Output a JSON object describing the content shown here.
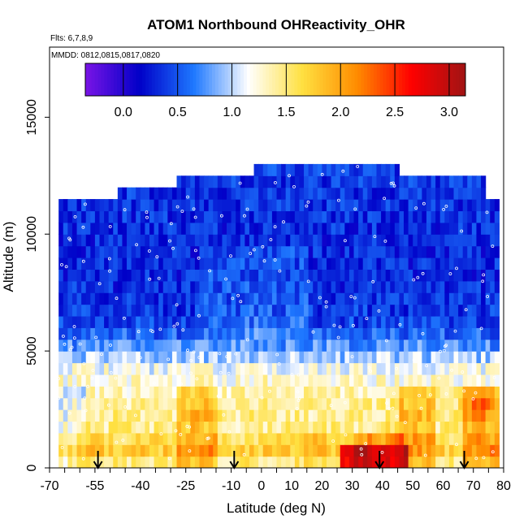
{
  "chart_data": {
    "type": "heatmap",
    "title": "ATOM1 Northbound OHReactivity_OHR",
    "subtitle_flights": "Flts: 6,7,8,9",
    "subtitle_dates": "MMDD: 0812,0815,0817,0820",
    "xlabel": "Latitude (deg N)",
    "ylabel": "Altitude (m)",
    "xlim": [
      -70,
      80
    ],
    "ylim": [
      0,
      18000
    ],
    "x_ticks": [
      -70,
      -55,
      -40,
      -25,
      -10,
      0,
      10,
      20,
      30,
      40,
      50,
      60,
      70,
      80
    ],
    "x_tick_labels": [
      "-70",
      "-55",
      "-40",
      "-25",
      "-10",
      "0",
      "10",
      "20",
      "30",
      "40",
      "50",
      "60",
      "70",
      "80"
    ],
    "y_ticks": [
      0,
      5000,
      10000,
      15000
    ],
    "y_tick_labels": [
      "0",
      "5000",
      "10000",
      "15000"
    ],
    "colorbar": {
      "range": [
        -0.35,
        3.15
      ],
      "ticks": [
        0.0,
        0.5,
        1.0,
        1.5,
        2.0,
        2.5,
        3.0
      ],
      "tick_labels": [
        "0.0",
        "0.5",
        "1.0",
        "1.5",
        "2.0",
        "2.5",
        "3.0"
      ],
      "stops": [
        "#7a14e6",
        "#0000c8",
        "#1e78ff",
        "#ffffff",
        "#ffe040",
        "#ff8c00",
        "#ff0000",
        "#a01414"
      ]
    },
    "coverage_top": [
      {
        "lat_min": -67,
        "lat_max": -47,
        "alt_max": 11400
      },
      {
        "lat_min": -47,
        "lat_max": -28,
        "alt_max": 11900
      },
      {
        "lat_min": -28,
        "lat_max": -3,
        "alt_max": 12400
      },
      {
        "lat_min": -3,
        "lat_max": 45,
        "alt_max": 12900
      },
      {
        "lat_min": 45,
        "lat_max": 74,
        "alt_max": 12400
      },
      {
        "lat_min": 74,
        "lat_max": 78,
        "alt_max": 11400
      }
    ],
    "alt_profile": [
      {
        "alt": 250,
        "value": 1.5
      },
      {
        "alt": 800,
        "value": 1.75
      },
      {
        "alt": 1300,
        "value": 1.6
      },
      {
        "alt": 1850,
        "value": 1.4
      },
      {
        "alt": 2350,
        "value": 1.45
      },
      {
        "alt": 2900,
        "value": 1.4
      },
      {
        "alt": 3400,
        "value": 1.3
      },
      {
        "alt": 3900,
        "value": 1.25
      },
      {
        "alt": 4450,
        "value": 1.1
      },
      {
        "alt": 4950,
        "value": 0.85
      },
      {
        "alt": 5500,
        "value": 0.65
      },
      {
        "alt": 6000,
        "value": 0.45
      },
      {
        "alt": 7000,
        "value": 0.35
      },
      {
        "alt": 8500,
        "value": 0.3
      },
      {
        "alt": 10000,
        "value": 0.32
      },
      {
        "alt": 11500,
        "value": 0.35
      },
      {
        "alt": 12900,
        "value": 0.4
      }
    ],
    "hotspots": [
      {
        "lat": 37,
        "alt": 700,
        "value": 3.0
      },
      {
        "lat": 33,
        "alt": 400,
        "value": 3.1
      },
      {
        "lat": 45,
        "alt": 1200,
        "value": 2.4
      },
      {
        "lat": 16,
        "alt": 900,
        "value": 2.2
      },
      {
        "lat": 72,
        "alt": 2700,
        "value": 2.6
      },
      {
        "lat": -20,
        "alt": 2400,
        "value": 2.0
      },
      {
        "lat": 50,
        "alt": 2200,
        "value": 2.0
      },
      {
        "lat": -60,
        "alt": 800,
        "value": 2.0
      }
    ],
    "arrows_lat": [
      -54,
      -9,
      39,
      67
    ]
  }
}
